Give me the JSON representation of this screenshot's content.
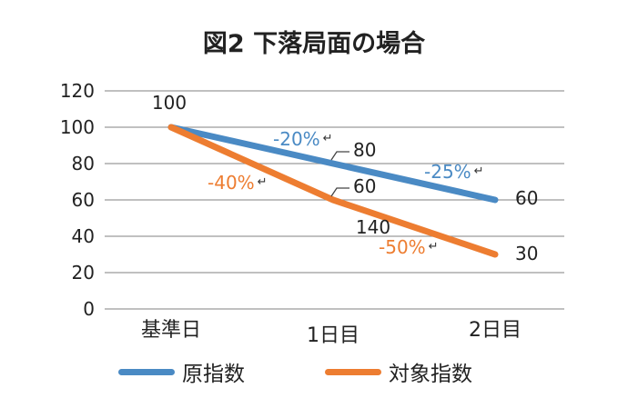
{
  "chart_data": {
    "type": "line",
    "title": "図2 下落局面の場合",
    "categories": [
      "基準日",
      "1日目",
      "2日目"
    ],
    "ylim": [
      0,
      120
    ],
    "yticks": [
      0,
      20,
      40,
      60,
      80,
      100,
      120
    ],
    "grid": true,
    "legend_position": "bottom",
    "series": [
      {
        "name": "原指数",
        "values": [
          100,
          80,
          60
        ],
        "color": "#4a8ac4"
      },
      {
        "name": "対象指数",
        "values": [
          100,
          60,
          30
        ],
        "color": "#ed7d31"
      }
    ],
    "data_labels": [
      "100",
      "80",
      "60",
      "60",
      "30",
      "140"
    ],
    "annotations": [
      {
        "text": "-20%",
        "color": "#4a8ac4"
      },
      {
        "text": "-25%",
        "color": "#4a8ac4"
      },
      {
        "text": "-40%",
        "color": "#ed7d31"
      },
      {
        "text": "-50%",
        "color": "#ed7d31"
      }
    ],
    "return_glyph": "↵"
  }
}
